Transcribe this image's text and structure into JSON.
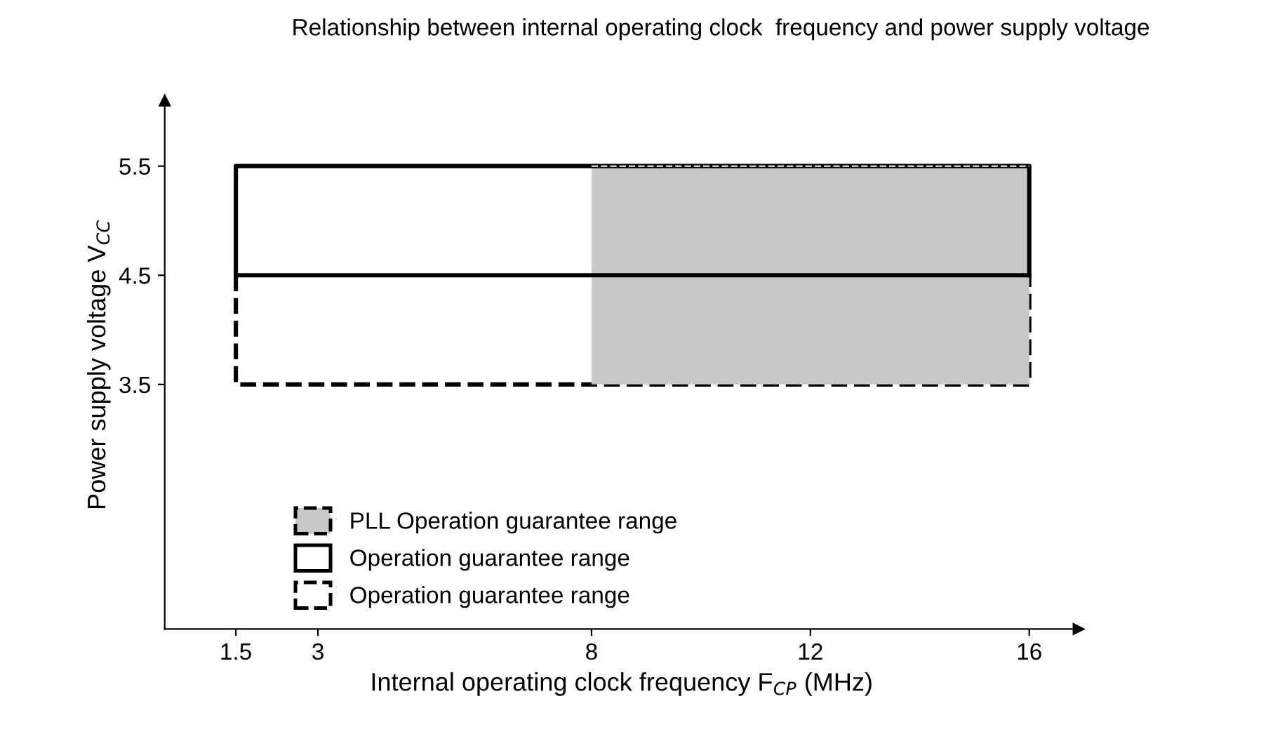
{
  "chart_data": {
    "type": "line",
    "title": "Relationship between internal operating clock  frequency and power supply voltage",
    "xlabel": "Internal operating clock frequency F$_{CP}$ (MHz)",
    "ylabel": "Power supply voltage V$_{CC}$",
    "xlim": [
      0.2,
      16.9
    ],
    "xticks": [
      1.5,
      3,
      8,
      12,
      16
    ],
    "ylim": [
      1.26,
      6.1
    ],
    "yticks": [
      3.5,
      4.5,
      5.5
    ],
    "grid": false,
    "legend": "bottom left",
    "marker": "none",
    "series": [
      {
        "name": "Operation guarantee range",
        "color": "#000000",
        "x": [
          1.5,
          1.5,
          16,
          16
        ],
        "values": [
          4.5,
          3.5,
          3.5,
          4.5
        ],
        "line_style": "dashed"
      },
      {
        "name": "PLL Operation guarantee range",
        "color": "#c8c8c8",
        "x": [
          8,
          16
        ],
        "values": [
          5.5,
          5.5
        ],
        "lower": [
          3.5,
          3.5
        ],
        "upper": [
          5.5,
          5.5
        ],
        "line_style": "dashed"
      },
      {
        "name": "Operation guarantee range",
        "color": "#000000",
        "x": [
          1.5,
          1.5,
          16,
          16
        ],
        "values": [
          4.5,
          5.5,
          5.5,
          4.5
        ],
        "line_style": "solid"
      },
      {
        "color": "#000000",
        "x": [
          1.5,
          16
        ],
        "values": [
          4.5,
          4.5
        ],
        "line_style": "solid"
      }
    ]
  }
}
